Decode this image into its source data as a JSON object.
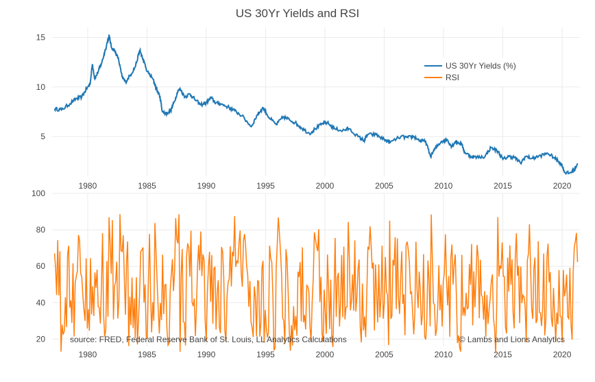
{
  "chart_data": [
    {
      "type": "line",
      "title": "US 30Yr Yields and RSI",
      "series": [
        {
          "name": "US 30Yr Yields (%)",
          "color": "#1f77b4",
          "x": [
            1977.2,
            1977.8,
            1978.5,
            1979.0,
            1979.5,
            1979.9,
            1980.2,
            1980.4,
            1980.6,
            1980.9,
            1981.2,
            1981.5,
            1981.8,
            1982.0,
            1982.3,
            1982.6,
            1982.9,
            1983.2,
            1983.6,
            1984.0,
            1984.4,
            1984.6,
            1985.0,
            1985.5,
            1985.8,
            1986.1,
            1986.3,
            1986.6,
            1987.0,
            1987.3,
            1987.6,
            1987.8,
            1988.2,
            1988.6,
            1989.0,
            1989.5,
            1990.0,
            1990.4,
            1990.8,
            1991.2,
            1991.8,
            1992.4,
            1993.0,
            1993.8,
            1994.3,
            1994.8,
            1995.3,
            1995.9,
            1996.5,
            1997.0,
            1997.5,
            1998.0,
            1998.7,
            1999.2,
            1999.8,
            2000.2,
            2000.8,
            2001.5,
            2002.0,
            2002.8,
            2003.3,
            2003.6,
            2004.3,
            2005.0,
            2005.5,
            2006.4,
            2007.0,
            2007.5,
            2008.0,
            2008.5,
            2008.9,
            2009.3,
            2009.8,
            2010.3,
            2010.7,
            2011.0,
            2011.5,
            2011.8,
            2012.3,
            2012.8,
            2013.5,
            2014.0,
            2014.6,
            2015.0,
            2015.5,
            2016.0,
            2016.5,
            2016.9,
            2017.5,
            2018.0,
            2018.8,
            2019.3,
            2019.8,
            2020.0,
            2020.2,
            2020.6,
            2021.0,
            2021.3
          ],
          "y": [
            7.8,
            7.7,
            8.3,
            8.8,
            9.0,
            9.8,
            10.3,
            12.3,
            10.8,
            11.6,
            12.5,
            13.8,
            15.2,
            14.0,
            13.6,
            12.8,
            11.0,
            10.5,
            11.2,
            12.0,
            13.7,
            13.0,
            11.6,
            10.8,
            9.8,
            9.0,
            7.5,
            7.3,
            7.6,
            8.5,
            9.6,
            9.8,
            9.0,
            9.3,
            8.8,
            8.2,
            8.4,
            8.9,
            8.4,
            8.3,
            8.0,
            7.6,
            7.1,
            6.0,
            7.2,
            7.9,
            6.9,
            6.2,
            7.0,
            6.7,
            6.4,
            5.9,
            5.3,
            5.8,
            6.3,
            6.4,
            5.8,
            5.6,
            5.8,
            5.0,
            4.6,
            5.2,
            5.2,
            4.7,
            4.4,
            5.0,
            4.9,
            5.0,
            4.6,
            4.5,
            3.0,
            3.8,
            4.5,
            4.7,
            4.0,
            4.5,
            4.3,
            3.4,
            3.0,
            2.9,
            3.0,
            3.9,
            3.5,
            2.7,
            3.0,
            2.9,
            2.3,
            3.0,
            2.8,
            3.0,
            3.3,
            2.9,
            2.4,
            2.1,
            1.4,
            1.3,
            1.6,
            2.3
          ]
        },
        {
          "name": "RSI",
          "color": "#ff7f0e",
          "x_start": 1977.2,
          "x_end": 2021.3,
          "count": 480,
          "y_range": [
            10,
            89
          ],
          "annotations": {
            "min": 10,
            "max": 89,
            "typical_center": 50
          }
        }
      ],
      "subplots": [
        {
          "name": "yields",
          "xlim": [
            1977,
            2021.5
          ],
          "ylim": [
            1,
            16
          ],
          "xticks": [
            1980,
            1985,
            1990,
            1995,
            2000,
            2005,
            2010,
            2015,
            2020
          ],
          "yticks": [
            5,
            10,
            15
          ]
        },
        {
          "name": "rsi",
          "xlim": [
            1977,
            2021.5
          ],
          "ylim": [
            16,
            100
          ],
          "xticks": [
            1980,
            1985,
            1990,
            1995,
            2000,
            2005,
            2010,
            2015,
            2020
          ],
          "yticks": [
            20,
            40,
            60,
            80,
            100
          ]
        }
      ],
      "legend": {
        "placement": "top-right",
        "entries": [
          "US 30Yr Yields (%)",
          "RSI"
        ]
      },
      "annotations": {
        "source": "source: FRED, Federal Reserve Bank of St. Louis, LL Analytics Calculations",
        "credit": "© Lambs and Lions Analytics"
      },
      "grid": true
    }
  ]
}
